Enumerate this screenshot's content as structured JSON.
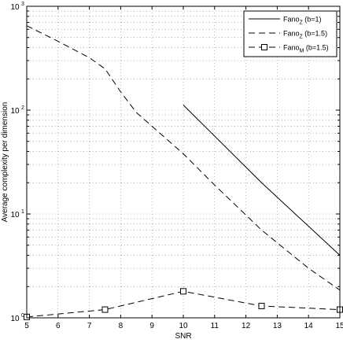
{
  "chart_data": {
    "type": "line",
    "title": "",
    "xlabel": "SNR",
    "ylabel": "Average complexity per dimension",
    "xlim": [
      5,
      15
    ],
    "ylim": [
      1,
      1000
    ],
    "yscale": "log",
    "grid": true,
    "legend_position": "top-right",
    "x_ticks": [
      "5",
      "6",
      "7",
      "8",
      "9",
      "10",
      "11",
      "12",
      "13",
      "14",
      "15"
    ],
    "y_ticks": [
      {
        "value": 1,
        "base": "10",
        "exp": "0"
      },
      {
        "value": 10,
        "base": "10",
        "exp": "1"
      },
      {
        "value": 100,
        "base": "10",
        "exp": "2"
      },
      {
        "value": 1000,
        "base": "10",
        "exp": "3"
      }
    ],
    "series": [
      {
        "name_base": "Fano",
        "name_sub": "Z",
        "name_rest": " (b=1)",
        "line_style": "solid",
        "marker": "none",
        "x": [
          10,
          12.5,
          15
        ],
        "y": [
          112,
          20,
          4
        ]
      },
      {
        "name_base": "Fano",
        "name_sub": "Z",
        "name_rest": " (b=1.5)",
        "line_style": "dashed",
        "marker": "none",
        "x": [
          5,
          6,
          7,
          7.5,
          8,
          8.5,
          9,
          10,
          11,
          12.5,
          14,
          15
        ],
        "y": [
          650,
          460,
          320,
          250,
          150,
          95,
          70,
          38,
          19,
          7,
          3,
          1.85
        ]
      },
      {
        "name_base": "Fano",
        "name_sub": "M",
        "name_rest": " (b=1.5)",
        "line_style": "dashed",
        "marker": "square",
        "x": [
          5,
          7.5,
          10,
          12.5,
          15
        ],
        "y": [
          1.02,
          1.2,
          1.8,
          1.3,
          1.2
        ]
      }
    ]
  }
}
